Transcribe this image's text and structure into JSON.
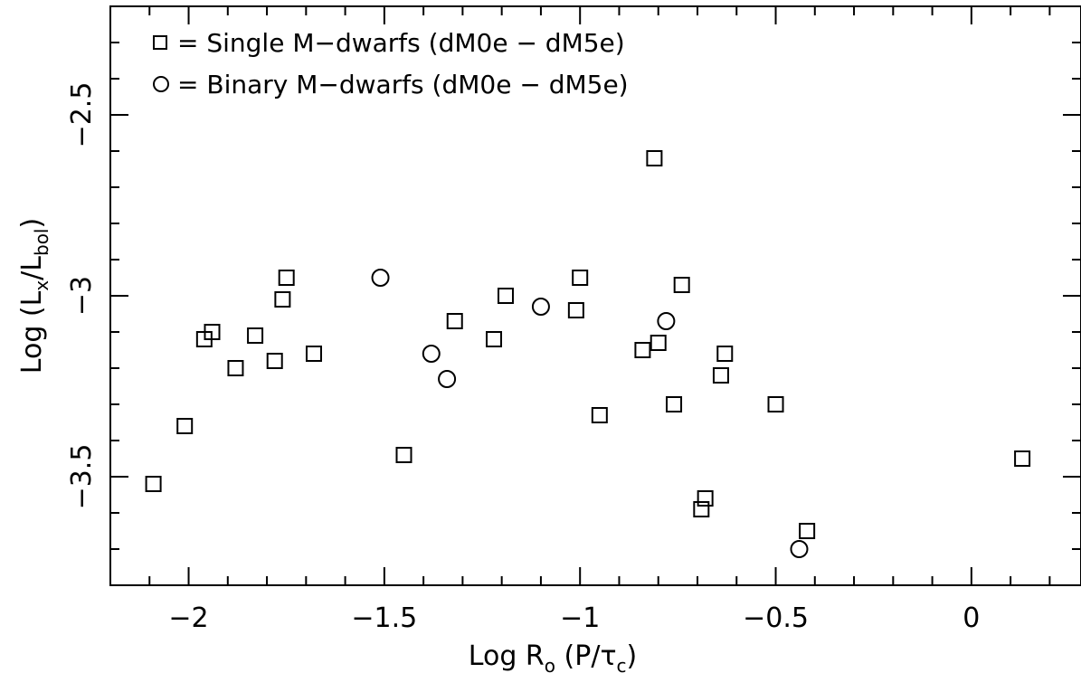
{
  "chart_data": {
    "type": "scatter",
    "title": "",
    "xlabel": "Log R_o (P/τ_c)",
    "ylabel": "Log (L_x/L_bol)",
    "xlim": [
      -2.2,
      0.28
    ],
    "ylim": [
      -3.8,
      -2.2
    ],
    "x_ticks": [
      -2,
      -1.5,
      -1,
      -0.5,
      0
    ],
    "x_tick_labels": [
      "−2",
      "−1.5",
      "−1",
      "−0.5",
      "0"
    ],
    "y_ticks": [
      -2.5,
      -3,
      -3.5
    ],
    "y_tick_labels": [
      "−2.5",
      "−3",
      "−3.5"
    ],
    "legend_position": "top-left",
    "grid": false,
    "series": [
      {
        "name": "Single M−dwarfs (dM0e − dM5e)",
        "legend_label": "= Single M−dwarfs (dM0e − dM5e)",
        "marker": "square",
        "points": [
          {
            "x": -2.09,
            "y": -3.52
          },
          {
            "x": -2.01,
            "y": -3.36
          },
          {
            "x": -1.96,
            "y": -3.12
          },
          {
            "x": -1.94,
            "y": -3.1
          },
          {
            "x": -1.88,
            "y": -3.2
          },
          {
            "x": -1.83,
            "y": -3.11
          },
          {
            "x": -1.78,
            "y": -3.18
          },
          {
            "x": -1.76,
            "y": -3.01
          },
          {
            "x": -1.75,
            "y": -2.95
          },
          {
            "x": -1.68,
            "y": -3.16
          },
          {
            "x": -1.45,
            "y": -3.44
          },
          {
            "x": -1.32,
            "y": -3.07
          },
          {
            "x": -1.22,
            "y": -3.12
          },
          {
            "x": -1.19,
            "y": -3.0
          },
          {
            "x": -1.01,
            "y": -3.04
          },
          {
            "x": -1.0,
            "y": -2.95
          },
          {
            "x": -0.95,
            "y": -3.33
          },
          {
            "x": -0.84,
            "y": -3.15
          },
          {
            "x": -0.81,
            "y": -2.62
          },
          {
            "x": -0.8,
            "y": -3.13
          },
          {
            "x": -0.76,
            "y": -3.3
          },
          {
            "x": -0.74,
            "y": -2.97
          },
          {
            "x": -0.69,
            "y": -3.59
          },
          {
            "x": -0.68,
            "y": -3.56
          },
          {
            "x": -0.64,
            "y": -3.22
          },
          {
            "x": -0.63,
            "y": -3.16
          },
          {
            "x": -0.5,
            "y": -3.3
          },
          {
            "x": -0.42,
            "y": -3.65
          },
          {
            "x": 0.13,
            "y": -3.45
          }
        ]
      },
      {
        "name": "Binary M−dwarfs (dM0e − dM5e)",
        "legend_label": "= Binary M−dwarfs (dM0e − dM5e)",
        "marker": "circle",
        "points": [
          {
            "x": -1.51,
            "y": -2.95
          },
          {
            "x": -1.38,
            "y": -3.16
          },
          {
            "x": -1.34,
            "y": -3.23
          },
          {
            "x": -1.1,
            "y": -3.03
          },
          {
            "x": -0.78,
            "y": -3.07
          },
          {
            "x": -0.44,
            "y": -3.7
          }
        ]
      }
    ]
  }
}
